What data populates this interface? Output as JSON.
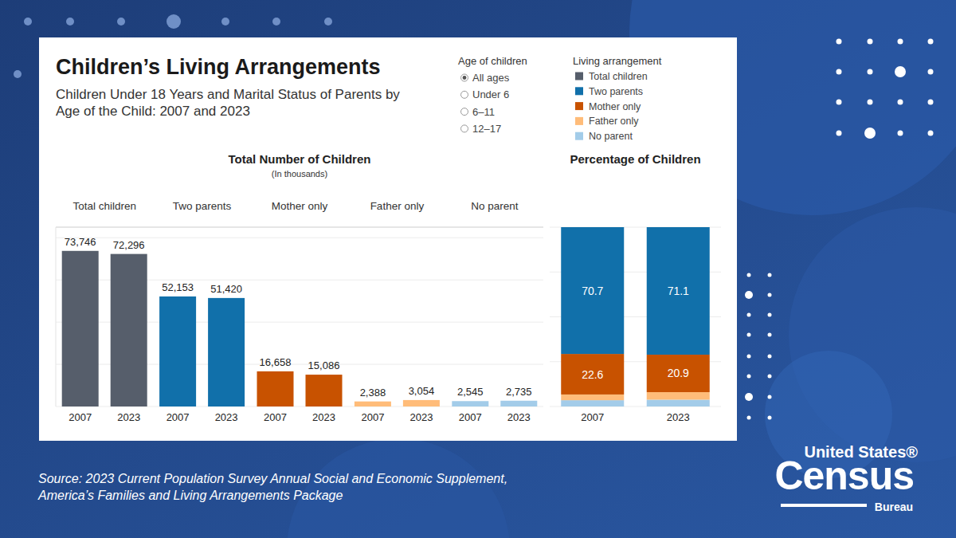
{
  "header": {
    "title": "Children’s Living Arrangements",
    "subtitle": [
      "Children Under 18 Years and Marital Status of Parents by",
      "Age of the Child: 2007 and 2023"
    ]
  },
  "age_filter": {
    "title": "Age of children",
    "options": [
      {
        "label": "All ages",
        "selected": true
      },
      {
        "label": "Under 6",
        "selected": false
      },
      {
        "label": "6–11",
        "selected": false
      },
      {
        "label": "12–17",
        "selected": false
      }
    ]
  },
  "legend": {
    "title": "Living arrangement"
  },
  "chart_data": [
    {
      "type": "bar",
      "title": "Total Number of Children",
      "subtitle": "(In thousands)",
      "categories": [
        "Total children",
        "Two parents",
        "Mother only",
        "Father only",
        "No parent"
      ],
      "colors": [
        "#565e6b",
        "#1170aa",
        "#c85200",
        "#ffbc79",
        "#a3cce9"
      ],
      "series": [
        {
          "name": "2007",
          "values": [
            73746,
            52153,
            16658,
            2388,
            2545
          ],
          "value_labels": [
            "73,746",
            "52,153",
            "16,658",
            "2,388",
            "2,545"
          ]
        },
        {
          "name": "2023",
          "values": [
            72296,
            51420,
            15086,
            3054,
            2735
          ],
          "value_labels": [
            "72,296",
            "51,420",
            "15,086",
            "3,054",
            "2,735"
          ]
        }
      ],
      "ylim": [
        0,
        85000
      ],
      "yticks": [
        0,
        20000,
        40000,
        60000,
        80000
      ],
      "grid": true,
      "data_labels": true,
      "tick_labels": "x"
    },
    {
      "type": "bar",
      "stacked": true,
      "title": "Percentage of Children",
      "categories": [
        "2007",
        "2023"
      ],
      "series": [
        {
          "name": "Two parents",
          "color": "#1170aa",
          "values": [
            70.7,
            71.1
          ],
          "data_labels": true
        },
        {
          "name": "Mother only",
          "color": "#c85200",
          "values": [
            22.6,
            20.9
          ],
          "data_labels": true
        },
        {
          "name": "Father only",
          "color": "#ffbc79",
          "values": [
            3.2,
            4.2
          ],
          "data_labels": false
        },
        {
          "name": "No parent",
          "color": "#a3cce9",
          "values": [
            3.5,
            3.8
          ],
          "data_labels": false
        }
      ],
      "ylim": [
        0,
        100
      ],
      "yticks": [
        0,
        25,
        50,
        75,
        100
      ],
      "grid": true,
      "tick_labels": "x"
    }
  ],
  "source": [
    "Source: 2023 Current Population Survey Annual Social and Economic Supplement,",
    "America’s Families and Living Arrangements Package"
  ],
  "logo": {
    "top": "United States®",
    "main": "Census",
    "bottom": "Bureau"
  }
}
